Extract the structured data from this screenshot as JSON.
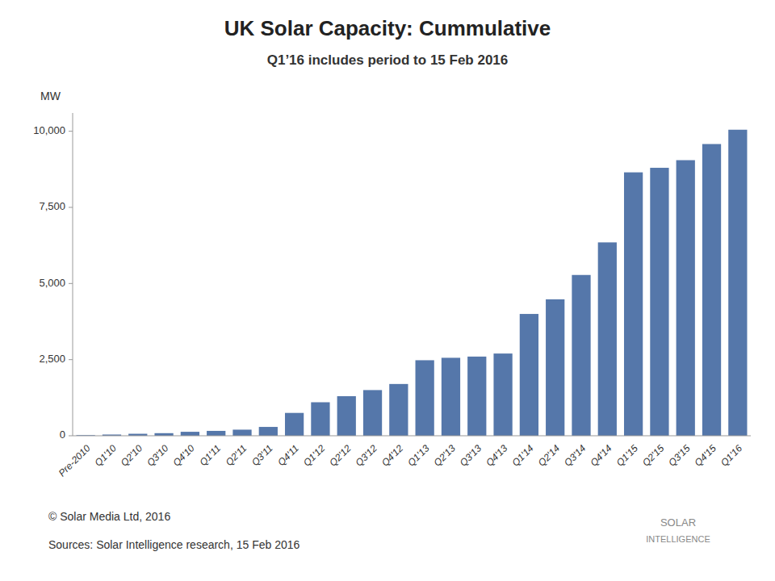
{
  "chart_data": {
    "type": "bar",
    "title": "UK Solar Capacity: Cummulative",
    "subtitle": "Q1’16 includes period to 15 Feb 2016",
    "ylabel": "MW",
    "categories": [
      "Pre-2010",
      "Q1'10",
      "Q2'10",
      "Q3'10",
      "Q4'10",
      "Q1'11",
      "Q2'11",
      "Q3'11",
      "Q4'11",
      "Q1'12",
      "Q2'12",
      "Q3'12",
      "Q4'12",
      "Q1'13",
      "Q2'13",
      "Q3'13",
      "Q4'13",
      "Q1'14",
      "Q2'14",
      "Q3'14",
      "Q4'14",
      "Q1'15",
      "Q2'15",
      "Q3'15",
      "Q4'15",
      "Q1'16"
    ],
    "values": [
      20,
      40,
      65,
      85,
      130,
      160,
      200,
      290,
      750,
      1100,
      1300,
      1500,
      1700,
      2480,
      2560,
      2600,
      2700,
      4000,
      4480,
      5280,
      6350,
      8650,
      8800,
      9050,
      9580,
      10050
    ],
    "color": "#5577aa",
    "ylim": [
      0,
      10600
    ],
    "yticks": [
      0,
      {
        "value": 2500,
        "label": "2,500"
      },
      {
        "value": 5000,
        "label": "5,000"
      },
      {
        "value": 7500,
        "label": "7,500"
      },
      {
        "value": 10000,
        "label": "10,000"
      }
    ],
    "grid": false,
    "annotations": [
      "© Solar Media Ltd, 2016",
      "Sources: Solar Intelligence research, 15 Feb 2016",
      "SOLAR",
      "INTELLIGENCE"
    ]
  }
}
